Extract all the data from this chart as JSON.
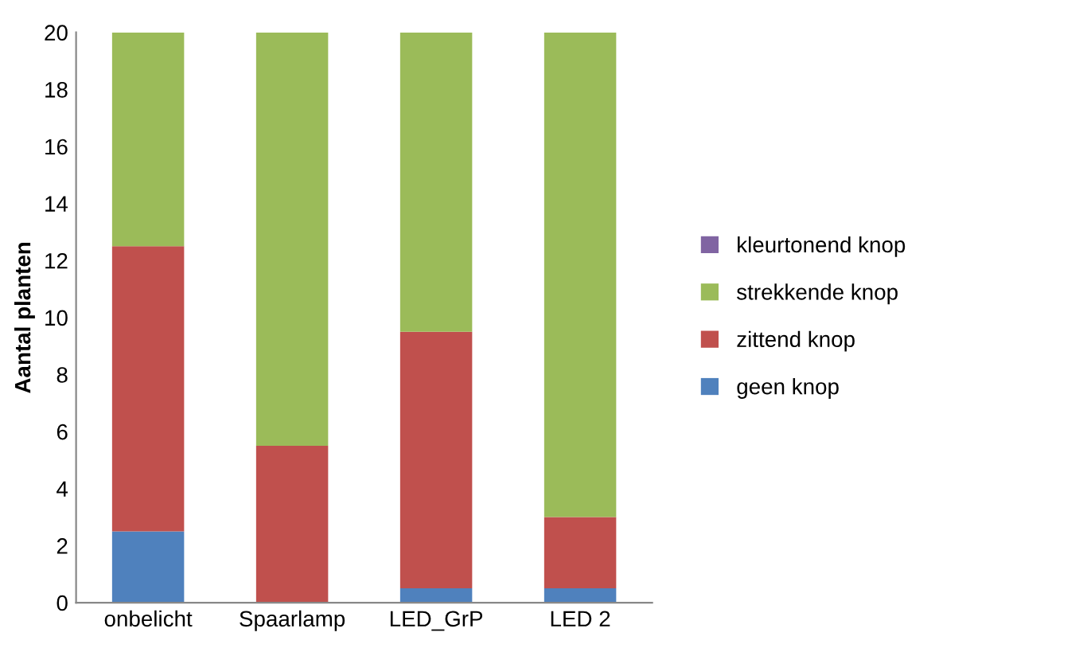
{
  "chart_data": {
    "type": "bar",
    "stacked": true,
    "ylabel": "Aantal planten",
    "categories": [
      "onbelicht",
      "Spaarlamp",
      "LED_GrP",
      "LED 2"
    ],
    "series": [
      {
        "name": "geen knop",
        "color": "#4f81bd",
        "values": [
          2.5,
          0,
          0.5,
          0.5
        ]
      },
      {
        "name": "zittend knop",
        "color": "#c0504d",
        "values": [
          10,
          5.5,
          9,
          2.5
        ]
      },
      {
        "name": "strekkende knop",
        "color": "#9bbb59",
        "values": [
          7.5,
          14.5,
          10.5,
          17
        ]
      },
      {
        "name": "kleurtonend knop",
        "color": "#8064a2",
        "values": [
          0,
          0,
          0,
          0
        ]
      }
    ],
    "ylim": [
      0,
      20
    ],
    "yticks": [
      0,
      2,
      4,
      6,
      8,
      10,
      12,
      14,
      16,
      18,
      20
    ],
    "legend": "right"
  }
}
